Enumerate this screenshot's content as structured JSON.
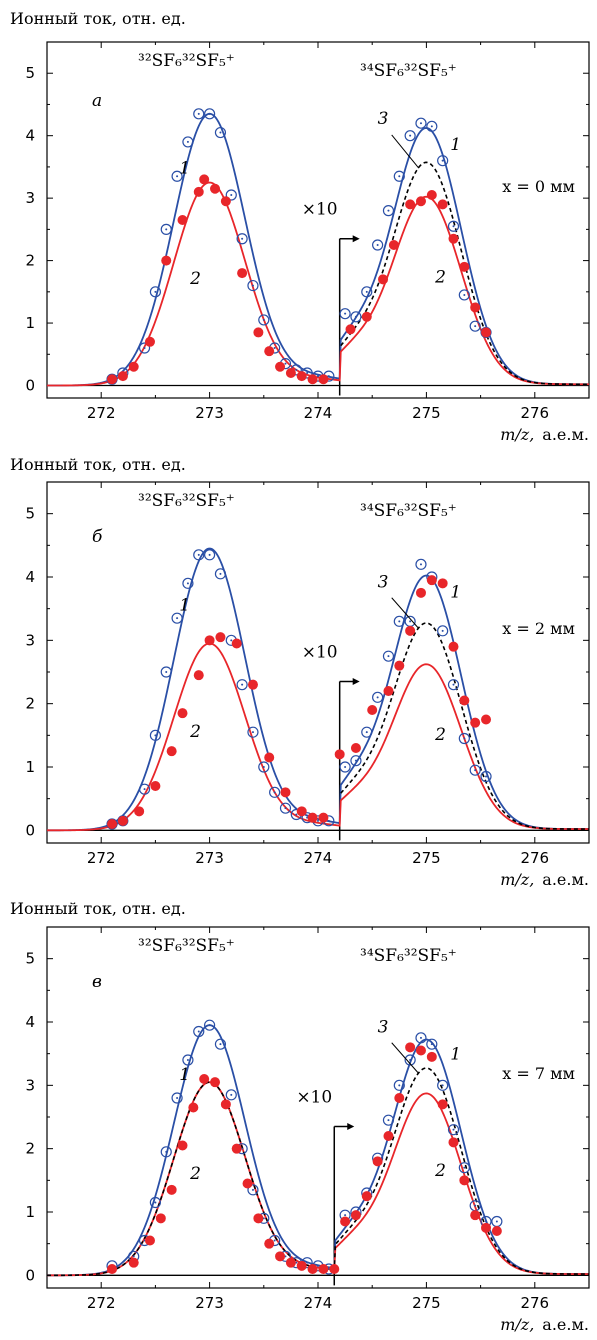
{
  "chart_data": [
    {
      "type": "line",
      "panel_label": "а",
      "ylabel": "Ионный  ток, отн. ед.",
      "xlabel_var": "m/z,",
      "xlabel_unit": "а.е.м.",
      "xlim": [
        271.5,
        276.5
      ],
      "ylim": [
        -0.2,
        5.5
      ],
      "xticks": [
        272,
        273,
        274,
        275,
        276
      ],
      "yticks": [
        0,
        1,
        2,
        3,
        4,
        5
      ],
      "left_label": "³²SF₆³²SF₅⁺",
      "right_label": "³⁴SF₆³²SF₅⁺",
      "condition_label": "x = 0 мм",
      "scale_marker": {
        "label": "×10",
        "x": 274.2
      },
      "colors": {
        "curve_1": "#2a4fa6",
        "curve_2": "#e8262a",
        "curve_3": "#000000"
      },
      "series": [
        {
          "name": "1",
          "style": "line",
          "color": "#2a4fa6",
          "peaks": {
            "left_amp": 4.35,
            "right_amp": 4.1
          }
        },
        {
          "name": "2",
          "style": "line",
          "color": "#e8262a",
          "peaks": {
            "left_amp": 3.25,
            "right_amp": 3.0
          }
        },
        {
          "name": "3",
          "style": "dashed",
          "color": "#000000",
          "peaks": {
            "right_amp": 3.55
          }
        },
        {
          "name": "1",
          "style": "open-circles",
          "color": "#2a4fa6",
          "x": [
            272.1,
            272.2,
            272.4,
            272.5,
            272.6,
            272.7,
            272.8,
            272.9,
            273.0,
            273.1,
            273.2,
            273.3,
            273.4,
            273.5,
            273.6,
            273.7,
            273.8,
            273.9,
            274.0,
            274.1,
            274.25,
            274.35,
            274.45,
            274.55,
            274.65,
            274.75,
            274.85,
            274.95,
            275.05,
            275.15,
            275.25,
            275.35,
            275.45,
            275.55
          ],
          "y": [
            0.1,
            0.2,
            0.6,
            1.5,
            2.5,
            3.35,
            3.9,
            4.35,
            4.35,
            4.05,
            3.05,
            2.35,
            1.6,
            1.05,
            0.6,
            0.35,
            0.25,
            0.2,
            0.15,
            0.15,
            1.15,
            1.1,
            1.5,
            2.25,
            2.8,
            3.35,
            4.0,
            4.2,
            4.15,
            3.6,
            2.55,
            1.45,
            0.95,
            0.85
          ]
        },
        {
          "name": "2",
          "style": "filled-dots",
          "color": "#e8262a",
          "x": [
            272.1,
            272.2,
            272.3,
            272.45,
            272.6,
            272.75,
            272.9,
            272.95,
            273.05,
            273.15,
            273.3,
            273.45,
            273.55,
            273.65,
            273.75,
            273.85,
            273.95,
            274.05,
            274.3,
            274.45,
            274.6,
            274.7,
            274.85,
            274.95,
            275.05,
            275.15,
            275.25,
            275.35,
            275.45,
            275.55
          ],
          "y": [
            0.1,
            0.15,
            0.3,
            0.7,
            2.0,
            2.65,
            3.1,
            3.3,
            3.15,
            2.95,
            1.8,
            0.85,
            0.55,
            0.3,
            0.2,
            0.15,
            0.1,
            0.1,
            0.9,
            1.1,
            1.7,
            2.25,
            2.9,
            2.95,
            3.05,
            2.9,
            2.35,
            1.9,
            1.25,
            0.85
          ]
        }
      ]
    },
    {
      "type": "line",
      "panel_label": "б",
      "ylabel": "Ионный  ток, отн. ед.",
      "xlabel_var": "m/z,",
      "xlabel_unit": "а.е.м.",
      "xlim": [
        271.5,
        276.5
      ],
      "ylim": [
        -0.2,
        5.5
      ],
      "xticks": [
        272,
        273,
        274,
        275,
        276
      ],
      "yticks": [
        0,
        1,
        2,
        3,
        4,
        5
      ],
      "left_label": "³²SF₆³²SF₅⁺",
      "right_label": "³⁴SF₆³²SF₅⁺",
      "condition_label": "x = 2 мм",
      "scale_marker": {
        "label": "×10",
        "x": 274.2
      },
      "colors": {
        "curve_1": "#2a4fa6",
        "curve_2": "#e8262a",
        "curve_3": "#000000"
      },
      "series": [
        {
          "name": "1",
          "style": "line",
          "color": "#2a4fa6",
          "peaks": {
            "left_amp": 4.45,
            "right_amp": 4.0
          }
        },
        {
          "name": "2",
          "style": "line",
          "color": "#e8262a",
          "peaks": {
            "left_amp": 2.95,
            "right_amp": 2.6
          }
        },
        {
          "name": "3",
          "style": "dashed",
          "color": "#000000",
          "peaks": {
            "right_amp": 3.25
          }
        },
        {
          "name": "1",
          "style": "open-circles",
          "color": "#2a4fa6",
          "x": [
            272.1,
            272.2,
            272.4,
            272.5,
            272.6,
            272.7,
            272.8,
            272.9,
            273.0,
            273.1,
            273.2,
            273.3,
            273.4,
            273.5,
            273.6,
            273.7,
            273.8,
            273.9,
            274.0,
            274.1,
            274.25,
            274.35,
            274.45,
            274.55,
            274.65,
            274.75,
            274.85,
            274.95,
            275.05,
            275.15,
            275.25,
            275.35,
            275.45,
            275.55
          ],
          "y": [
            0.1,
            0.15,
            0.65,
            1.5,
            2.5,
            3.35,
            3.9,
            4.35,
            4.35,
            4.05,
            3.0,
            2.3,
            1.55,
            1.0,
            0.6,
            0.35,
            0.25,
            0.2,
            0.15,
            0.15,
            1.0,
            1.1,
            1.55,
            2.1,
            2.75,
            3.3,
            3.3,
            4.2,
            4.0,
            3.15,
            2.3,
            1.45,
            0.95,
            0.85
          ]
        },
        {
          "name": "2",
          "style": "filled-dots",
          "color": "#e8262a",
          "x": [
            272.1,
            272.2,
            272.35,
            272.5,
            272.65,
            272.75,
            272.9,
            273.0,
            273.1,
            273.25,
            273.4,
            273.55,
            273.7,
            273.85,
            273.95,
            274.05,
            274.2,
            274.35,
            274.5,
            274.65,
            274.75,
            274.85,
            274.95,
            275.05,
            275.15,
            275.25,
            275.35,
            275.45,
            275.55
          ],
          "y": [
            0.1,
            0.15,
            0.3,
            0.7,
            1.25,
            1.85,
            2.45,
            3.0,
            3.05,
            2.95,
            2.3,
            1.15,
            0.6,
            0.3,
            0.2,
            0.2,
            1.2,
            1.3,
            1.9,
            2.2,
            2.6,
            3.15,
            3.75,
            3.95,
            3.9,
            2.9,
            2.05,
            1.7,
            1.75
          ]
        }
      ]
    },
    {
      "type": "line",
      "panel_label": "в",
      "ylabel": "Ионный  ток, отн. ед.",
      "xlabel_var": "m/z,",
      "xlabel_unit": "а.е.м.",
      "xlim": [
        271.5,
        276.5
      ],
      "ylim": [
        -0.2,
        5.5
      ],
      "xticks": [
        272,
        273,
        274,
        275,
        276
      ],
      "yticks": [
        0,
        1,
        2,
        3,
        4,
        5
      ],
      "left_label": "³²SF₆³²SF₅⁺",
      "right_label": "³⁴SF₆³²SF₅⁺",
      "condition_label": "x = 7 мм",
      "scale_marker": {
        "label": "×10",
        "x": 274.15
      },
      "colors": {
        "curve_1": "#2a4fa6",
        "curve_2": "#e8262a",
        "curve_3": "#000000"
      },
      "series": [
        {
          "name": "1",
          "style": "line",
          "color": "#2a4fa6",
          "peaks": {
            "left_amp": 3.95,
            "right_amp": 3.7
          }
        },
        {
          "name": "2",
          "style": "line",
          "color": "#e8262a",
          "peaks": {
            "left_amp": 3.05,
            "right_amp": 2.85
          }
        },
        {
          "name": "3",
          "style": "dashed",
          "color": "#000000",
          "peaks": {
            "left_amp": 3.05,
            "right_amp": 3.25
          }
        },
        {
          "name": "1",
          "style": "open-circles",
          "color": "#2a4fa6",
          "x": [
            272.1,
            272.3,
            272.4,
            272.5,
            272.6,
            272.7,
            272.8,
            272.9,
            273.0,
            273.1,
            273.2,
            273.3,
            273.4,
            273.5,
            273.6,
            273.7,
            273.8,
            273.9,
            274.0,
            274.1,
            274.25,
            274.35,
            274.45,
            274.55,
            274.65,
            274.75,
            274.85,
            274.95,
            275.05,
            275.15,
            275.25,
            275.35,
            275.45,
            275.55,
            275.65
          ],
          "y": [
            0.15,
            0.3,
            0.55,
            1.15,
            1.95,
            2.8,
            3.4,
            3.85,
            3.95,
            3.65,
            2.85,
            2.0,
            1.35,
            0.9,
            0.55,
            0.3,
            0.2,
            0.2,
            0.15,
            0.1,
            0.95,
            1.0,
            1.3,
            1.85,
            2.45,
            3.0,
            3.4,
            3.75,
            3.65,
            3.0,
            2.3,
            1.7,
            1.1,
            0.85,
            0.85
          ]
        },
        {
          "name": "2",
          "style": "filled-dots",
          "color": "#e8262a",
          "x": [
            272.1,
            272.3,
            272.45,
            272.55,
            272.65,
            272.75,
            272.85,
            272.95,
            273.05,
            273.15,
            273.25,
            273.35,
            273.45,
            273.55,
            273.65,
            273.75,
            273.85,
            273.95,
            274.05,
            274.15,
            274.25,
            274.35,
            274.45,
            274.55,
            274.65,
            274.75,
            274.85,
            274.95,
            275.05,
            275.15,
            275.25,
            275.35,
            275.45,
            275.55,
            275.65
          ],
          "y": [
            0.1,
            0.2,
            0.55,
            0.9,
            1.35,
            2.05,
            2.65,
            3.1,
            3.05,
            2.7,
            2.0,
            1.45,
            0.9,
            0.5,
            0.3,
            0.2,
            0.15,
            0.1,
            0.1,
            0.1,
            0.85,
            0.95,
            1.25,
            1.8,
            2.2,
            2.8,
            3.6,
            3.55,
            3.45,
            2.7,
            2.1,
            1.5,
            0.95,
            0.75,
            0.7
          ]
        }
      ]
    }
  ]
}
